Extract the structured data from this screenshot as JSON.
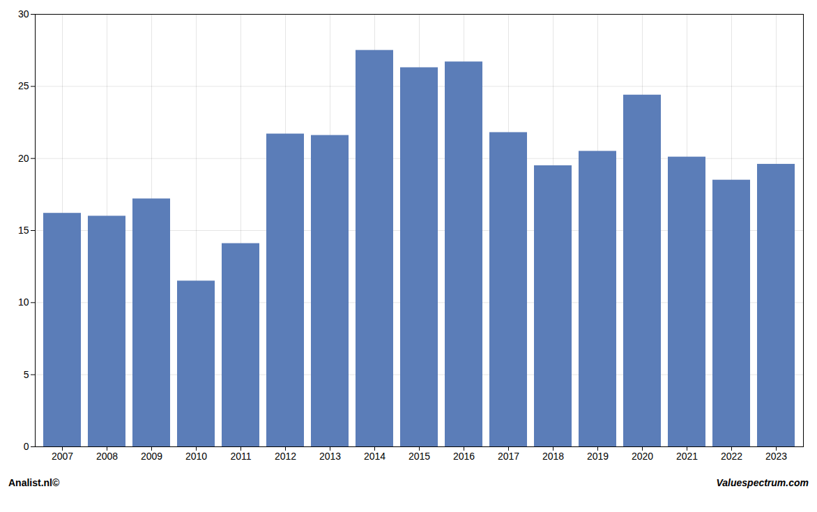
{
  "chart_data": {
    "type": "bar",
    "categories": [
      "2007",
      "2008",
      "2009",
      "2010",
      "2011",
      "2012",
      "2013",
      "2014",
      "2015",
      "2016",
      "2017",
      "2018",
      "2019",
      "2020",
      "2021",
      "2022",
      "2023"
    ],
    "values": [
      16.2,
      16.0,
      17.2,
      11.5,
      14.1,
      21.7,
      21.6,
      27.5,
      26.3,
      26.7,
      21.8,
      19.5,
      20.5,
      24.4,
      20.1,
      18.5,
      19.6
    ],
    "color": "#5b7db8",
    "ylim": [
      0,
      30
    ],
    "yticks": [
      0,
      5,
      10,
      15,
      20,
      25,
      30
    ],
    "grid": true,
    "annotations": [
      "Analist.nl©",
      "Valuespectrum.com"
    ]
  }
}
